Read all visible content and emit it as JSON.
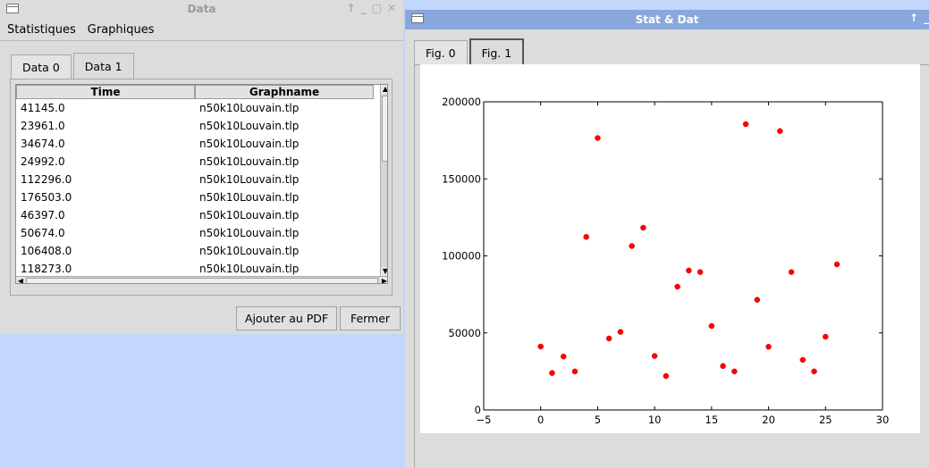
{
  "data_window": {
    "title": "Data",
    "controls": [
      "↑",
      "_",
      "□",
      "✕"
    ],
    "menu": [
      "Statistiques",
      "Graphiques"
    ],
    "tabs": [
      "Data 0",
      "Data 1"
    ],
    "active_tab": 1,
    "table": {
      "columns": [
        "Time",
        "Graphname"
      ],
      "rows": [
        [
          "41145.0",
          "n50k10Louvain.tlp"
        ],
        [
          "23961.0",
          "n50k10Louvain.tlp"
        ],
        [
          "34674.0",
          "n50k10Louvain.tlp"
        ],
        [
          "24992.0",
          "n50k10Louvain.tlp"
        ],
        [
          "112296.0",
          "n50k10Louvain.tlp"
        ],
        [
          "176503.0",
          "n50k10Louvain.tlp"
        ],
        [
          "46397.0",
          "n50k10Louvain.tlp"
        ],
        [
          "50674.0",
          "n50k10Louvain.tlp"
        ],
        [
          "106408.0",
          "n50k10Louvain.tlp"
        ],
        [
          "118273.0",
          "n50k10Louvain.tlp"
        ]
      ]
    },
    "buttons": {
      "add_pdf": "Ajouter au PDF",
      "close": "Fermer"
    }
  },
  "stat_window": {
    "title": "Stat & Dat",
    "controls": [
      "↑",
      "_"
    ],
    "tabs": [
      "Fig. 0",
      "Fig. 1"
    ],
    "active_tab": 1
  },
  "chart_data": {
    "type": "scatter",
    "title": "",
    "xlabel": "",
    "ylabel": "",
    "xlim": [
      -5,
      30
    ],
    "ylim": [
      0,
      200000
    ],
    "xticks": [
      -5,
      0,
      5,
      10,
      15,
      20,
      25,
      30
    ],
    "yticks": [
      0,
      50000,
      100000,
      150000,
      200000
    ],
    "xtick_labels": [
      "−5",
      "0",
      "5",
      "10",
      "15",
      "20",
      "25",
      "30"
    ],
    "ytick_labels": [
      "0",
      "50000",
      "100000",
      "150000",
      "200000"
    ],
    "marker_color": "#ff0000",
    "grid": false,
    "x": [
      0,
      1,
      2,
      3,
      4,
      5,
      6,
      7,
      8,
      9,
      10,
      11,
      12,
      13,
      14,
      15,
      16,
      17,
      18,
      19,
      20,
      21,
      22,
      23,
      24,
      25,
      26
    ],
    "y": [
      41145,
      23961,
      34674,
      24992,
      112296,
      176503,
      46397,
      50674,
      106408,
      118273,
      35000,
      22000,
      80000,
      90500,
      89500,
      54500,
      28500,
      25000,
      185500,
      71500,
      41000,
      181000,
      89500,
      32500,
      25000,
      47500,
      94500
    ]
  }
}
